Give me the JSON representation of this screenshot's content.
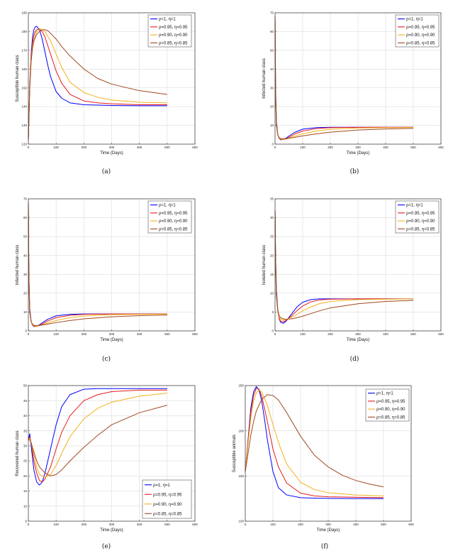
{
  "legend_labels": [
    "ρ=1, η=1",
    "ρ=0.95, η=0.95",
    "ρ=0.90, η=0.90",
    "ρ=0.85, η=0.85"
  ],
  "colors": [
    "#0000ff",
    "#e41a1c",
    "#f2b21b",
    "#a0481f"
  ],
  "chart_data": [
    {
      "type": "line",
      "caption": "(a)",
      "xlabel": "Time (Days)",
      "ylabel": "Susceptible human class",
      "xlim": [
        0,
        600
      ],
      "ylim": [
        120,
        190
      ],
      "xticks": [
        0,
        100,
        200,
        300,
        400,
        500,
        600
      ],
      "yticks": [
        120,
        130,
        140,
        150,
        160,
        170,
        180,
        190
      ],
      "legend_position": "top-right",
      "series": [
        {
          "name": "ρ=1, η=1",
          "x": [
            0,
            5,
            10,
            15,
            20,
            25,
            30,
            40,
            50,
            60,
            70,
            80,
            100,
            120,
            150,
            200,
            250,
            300,
            400,
            500
          ],
          "y": [
            122,
            150,
            168,
            177,
            181,
            182.5,
            182.8,
            181,
            176,
            169,
            162,
            156,
            148,
            144.5,
            142,
            141,
            140.8,
            140.6,
            140.5,
            140.5
          ]
        },
        {
          "name": "ρ=0.95, η=0.95",
          "x": [
            0,
            5,
            10,
            15,
            20,
            25,
            30,
            40,
            50,
            60,
            80,
            100,
            120,
            150,
            200,
            250,
            300,
            400,
            500
          ],
          "y": [
            122,
            152,
            167,
            174,
            178,
            180,
            181,
            181.5,
            180,
            177,
            168,
            159,
            152.5,
            146.5,
            143,
            142,
            141.5,
            141,
            141
          ]
        },
        {
          "name": "ρ=0.90, η=0.90",
          "x": [
            0,
            5,
            10,
            15,
            20,
            30,
            40,
            50,
            60,
            80,
            100,
            120,
            150,
            200,
            250,
            300,
            400,
            500
          ],
          "y": [
            122,
            150,
            165,
            172,
            176,
            180,
            181.3,
            181.3,
            180,
            175,
            168,
            161,
            153,
            147.5,
            145,
            143.5,
            142.3,
            142
          ]
        },
        {
          "name": "ρ=0.85, η=0.85",
          "x": [
            0,
            5,
            10,
            15,
            20,
            30,
            40,
            50,
            60,
            70,
            80,
            100,
            120,
            150,
            200,
            250,
            300,
            400,
            500
          ],
          "y": [
            122,
            150,
            164,
            171,
            175,
            178.5,
            180,
            180.8,
            181,
            180.5,
            179,
            176,
            172,
            167,
            160,
            155,
            152,
            148.5,
            146.5
          ]
        }
      ]
    },
    {
      "type": "line",
      "caption": "(b)",
      "xlabel": "Time (Days)",
      "ylabel": "Infected human class",
      "xlim": [
        0,
        600
      ],
      "ylim": [
        0,
        70
      ],
      "xticks": [
        0,
        100,
        200,
        300,
        400,
        500,
        600
      ],
      "yticks": [
        0,
        10,
        20,
        30,
        40,
        50,
        60,
        70
      ],
      "legend_position": "top-right",
      "series": [
        {
          "name": "ρ=1, η=1",
          "x": [
            0,
            2,
            5,
            10,
            15,
            20,
            30,
            40,
            50,
            70,
            100,
            150,
            200,
            300,
            400,
            500
          ],
          "y": [
            68,
            30,
            12,
            5,
            3,
            2.3,
            2.5,
            3.2,
            4.3,
            6.2,
            8.0,
            8.8,
            9.0,
            9.0,
            9.0,
            9.0
          ]
        },
        {
          "name": "ρ=0.95, η=0.95",
          "x": [
            0,
            2,
            5,
            10,
            15,
            20,
            30,
            40,
            50,
            70,
            100,
            150,
            200,
            300,
            400,
            500
          ],
          "y": [
            68,
            28,
            11,
            5,
            3,
            2.5,
            2.4,
            2.9,
            3.6,
            5.3,
            7.0,
            8.3,
            8.8,
            9.0,
            9.0,
            9.0
          ]
        },
        {
          "name": "ρ=0.90, η=0.90",
          "x": [
            0,
            2,
            5,
            10,
            15,
            20,
            30,
            40,
            50,
            70,
            100,
            150,
            200,
            300,
            400,
            500
          ],
          "y": [
            68,
            26,
            10,
            5,
            3.2,
            2.7,
            2.6,
            2.8,
            3.2,
            4.2,
            5.5,
            7.0,
            7.9,
            8.6,
            8.8,
            8.9
          ]
        },
        {
          "name": "ρ=0.85, η=0.85",
          "x": [
            0,
            2,
            5,
            10,
            15,
            20,
            30,
            40,
            50,
            70,
            100,
            150,
            200,
            300,
            400,
            500
          ],
          "y": [
            68,
            24,
            10,
            5,
            3.5,
            3.0,
            2.8,
            2.9,
            3.1,
            3.6,
            4.4,
            5.5,
            6.4,
            7.5,
            8.1,
            8.4
          ]
        }
      ]
    },
    {
      "type": "line",
      "caption": "(c)",
      "xlabel": "Time (Days)",
      "ylabel": "Infected human class",
      "xlim": [
        0,
        600
      ],
      "ylim": [
        0,
        70
      ],
      "xticks": [
        0,
        100,
        200,
        300,
        400,
        500,
        600
      ],
      "yticks": [
        0,
        10,
        20,
        30,
        40,
        50,
        60,
        70
      ],
      "legend_position": "top-right",
      "series": [
        {
          "name": "ρ=1, η=1",
          "x": [
            0,
            2,
            5,
            10,
            15,
            20,
            30,
            40,
            50,
            70,
            100,
            150,
            200,
            300,
            400,
            500
          ],
          "y": [
            68,
            30,
            12,
            5,
            3,
            2.3,
            2.5,
            3.2,
            4.3,
            6.2,
            8.0,
            8.8,
            9.0,
            9.0,
            9.0,
            9.0
          ]
        },
        {
          "name": "ρ=0.95, η=0.95",
          "x": [
            0,
            2,
            5,
            10,
            15,
            20,
            30,
            40,
            50,
            70,
            100,
            150,
            200,
            300,
            400,
            500
          ],
          "y": [
            68,
            28,
            11,
            5,
            3,
            2.5,
            2.4,
            2.9,
            3.6,
            5.3,
            7.0,
            8.3,
            8.8,
            9.0,
            9.0,
            9.0
          ]
        },
        {
          "name": "ρ=0.90, η=0.90",
          "x": [
            0,
            2,
            5,
            10,
            15,
            20,
            30,
            40,
            50,
            70,
            100,
            150,
            200,
            300,
            400,
            500
          ],
          "y": [
            68,
            26,
            10,
            5,
            3.2,
            2.7,
            2.6,
            2.8,
            3.2,
            4.2,
            5.5,
            7.0,
            7.9,
            8.6,
            8.8,
            8.9
          ]
        },
        {
          "name": "ρ=0.85, η=0.85",
          "x": [
            0,
            2,
            5,
            10,
            15,
            20,
            30,
            40,
            50,
            70,
            100,
            150,
            200,
            300,
            400,
            500
          ],
          "y": [
            68,
            24,
            10,
            5,
            3.5,
            3.0,
            2.8,
            2.9,
            3.1,
            3.6,
            4.4,
            5.5,
            6.4,
            7.5,
            8.1,
            8.4
          ]
        }
      ]
    },
    {
      "type": "line",
      "caption": "(d)",
      "xlabel": "Time (Days)",
      "ylabel": "Isolated human class",
      "xlim": [
        0,
        600
      ],
      "ylim": [
        0,
        35
      ],
      "xticks": [
        0,
        100,
        200,
        300,
        400,
        500,
        600
      ],
      "yticks": [
        0,
        5,
        10,
        15,
        20,
        25,
        30,
        35
      ],
      "legend_position": "top-right",
      "series": [
        {
          "name": "ρ=1, η=1",
          "x": [
            0,
            2,
            5,
            10,
            15,
            20,
            30,
            40,
            60,
            80,
            100,
            130,
            160,
            200,
            300,
            400,
            500
          ],
          "y": [
            32,
            20,
            11,
            5.5,
            3.2,
            2.3,
            2.0,
            2.6,
            4.5,
            6.4,
            7.6,
            8.3,
            8.5,
            8.5,
            8.5,
            8.5,
            8.5
          ]
        },
        {
          "name": "ρ=0.95, η=0.95",
          "x": [
            0,
            2,
            5,
            10,
            15,
            20,
            30,
            40,
            60,
            80,
            100,
            130,
            160,
            200,
            300,
            400,
            500
          ],
          "y": [
            32,
            19,
            10,
            5.0,
            3.2,
            2.6,
            2.4,
            2.8,
            4.0,
            5.4,
            6.6,
            7.7,
            8.2,
            8.4,
            8.5,
            8.5,
            8.5
          ]
        },
        {
          "name": "ρ=0.90, η=0.90",
          "x": [
            0,
            2,
            5,
            10,
            15,
            20,
            30,
            40,
            60,
            80,
            100,
            130,
            160,
            200,
            300,
            400,
            500
          ],
          "y": [
            32,
            18,
            9.5,
            5.2,
            3.6,
            3.1,
            2.9,
            3.0,
            3.6,
            4.4,
            5.3,
            6.4,
            7.2,
            7.8,
            8.3,
            8.4,
            8.5
          ]
        },
        {
          "name": "ρ=0.85, η=0.85",
          "x": [
            0,
            2,
            5,
            10,
            15,
            20,
            30,
            40,
            60,
            80,
            100,
            130,
            160,
            200,
            300,
            400,
            500
          ],
          "y": [
            32,
            17,
            9,
            5.5,
            4.0,
            3.5,
            3.2,
            3.1,
            3.2,
            3.5,
            3.9,
            4.6,
            5.3,
            6.1,
            7.2,
            7.8,
            8.1
          ]
        }
      ]
    },
    {
      "type": "line",
      "caption": "(e)",
      "xlabel": "Time (Days)",
      "ylabel": "Recovered human class",
      "xlim": [
        0,
        600
      ],
      "ylim": [
        5,
        50
      ],
      "xticks": [
        0,
        100,
        200,
        300,
        400,
        500,
        600
      ],
      "yticks": [
        5,
        10,
        15,
        20,
        25,
        30,
        35,
        40,
        45,
        50
      ],
      "legend_position": "bottom-right",
      "series": [
        {
          "name": "ρ=1, η=1",
          "x": [
            0,
            5,
            10,
            20,
            30,
            40,
            50,
            60,
            80,
            100,
            120,
            150,
            200,
            250,
            300,
            400,
            500
          ],
          "y": [
            32,
            34,
            30,
            22,
            18,
            17,
            18,
            21,
            29,
            37,
            43,
            47,
            48.8,
            49,
            49,
            49,
            49
          ]
        },
        {
          "name": "ρ=0.95, η=0.95",
          "x": [
            0,
            5,
            10,
            20,
            30,
            40,
            50,
            60,
            80,
            100,
            120,
            150,
            200,
            250,
            300,
            400,
            500
          ],
          "y": [
            32,
            33,
            31,
            25,
            21,
            18.5,
            18,
            19,
            23,
            29,
            34.5,
            40,
            45,
            47,
            48,
            48.5,
            48.5
          ]
        },
        {
          "name": "ρ=0.90, η=0.90",
          "x": [
            0,
            5,
            10,
            20,
            30,
            40,
            60,
            80,
            100,
            120,
            150,
            200,
            250,
            300,
            400,
            500
          ],
          "y": [
            32,
            32.5,
            31,
            27,
            23,
            20.5,
            19.5,
            20.5,
            23.5,
            27.5,
            33,
            39,
            42.5,
            44.5,
            46.5,
            47.5
          ]
        },
        {
          "name": "ρ=0.85, η=0.85",
          "x": [
            0,
            5,
            10,
            20,
            30,
            40,
            60,
            80,
            100,
            120,
            150,
            200,
            250,
            300,
            400,
            500
          ],
          "y": [
            32,
            32,
            31,
            28,
            25,
            23,
            21,
            20,
            20.5,
            22,
            25,
            29.5,
            33.5,
            37,
            41,
            43.5
          ]
        }
      ]
    },
    {
      "type": "line",
      "caption": "(f)",
      "xlabel": "Time (Days)",
      "ylabel": "Susceptible animals",
      "xlim": [
        0,
        600
      ],
      "ylim": [
        100,
        250
      ],
      "xticks": [
        0,
        100,
        200,
        300,
        400,
        500,
        600
      ],
      "yticks": [
        100,
        150,
        200,
        250
      ],
      "legend_position": "top-right",
      "series": [
        {
          "name": "ρ=1, η=1",
          "x": [
            0,
            10,
            20,
            30,
            40,
            50,
            60,
            70,
            80,
            100,
            120,
            150,
            200,
            250,
            300,
            400,
            500
          ],
          "y": [
            155,
            190,
            225,
            243,
            249,
            245,
            232,
            212,
            190,
            155,
            137,
            129,
            126,
            125.5,
            125.2,
            125,
            125
          ]
        },
        {
          "name": "ρ=0.95, η=0.95",
          "x": [
            0,
            10,
            20,
            30,
            40,
            50,
            60,
            80,
            100,
            120,
            150,
            200,
            250,
            300,
            400,
            500
          ],
          "y": [
            155,
            188,
            220,
            239,
            247,
            246,
            238,
            210,
            180,
            160,
            142,
            131,
            128,
            127,
            126.5,
            126
          ]
        },
        {
          "name": "ρ=0.90, η=0.90",
          "x": [
            0,
            10,
            20,
            30,
            40,
            50,
            60,
            80,
            100,
            120,
            150,
            200,
            250,
            300,
            400,
            500
          ],
          "y": [
            155,
            185,
            214,
            233,
            242,
            245,
            243,
            228,
            207,
            187,
            163,
            143,
            135,
            131.5,
            129,
            128
          ]
        },
        {
          "name": "ρ=0.85, η=0.85",
          "x": [
            0,
            10,
            20,
            30,
            40,
            60,
            80,
            100,
            120,
            150,
            200,
            250,
            300,
            350,
            400,
            450,
            500
          ],
          "y": [
            155,
            175,
            195,
            210,
            222,
            235,
            240,
            239,
            234,
            220,
            194,
            173,
            160,
            151,
            145,
            141,
            138
          ]
        }
      ]
    }
  ]
}
